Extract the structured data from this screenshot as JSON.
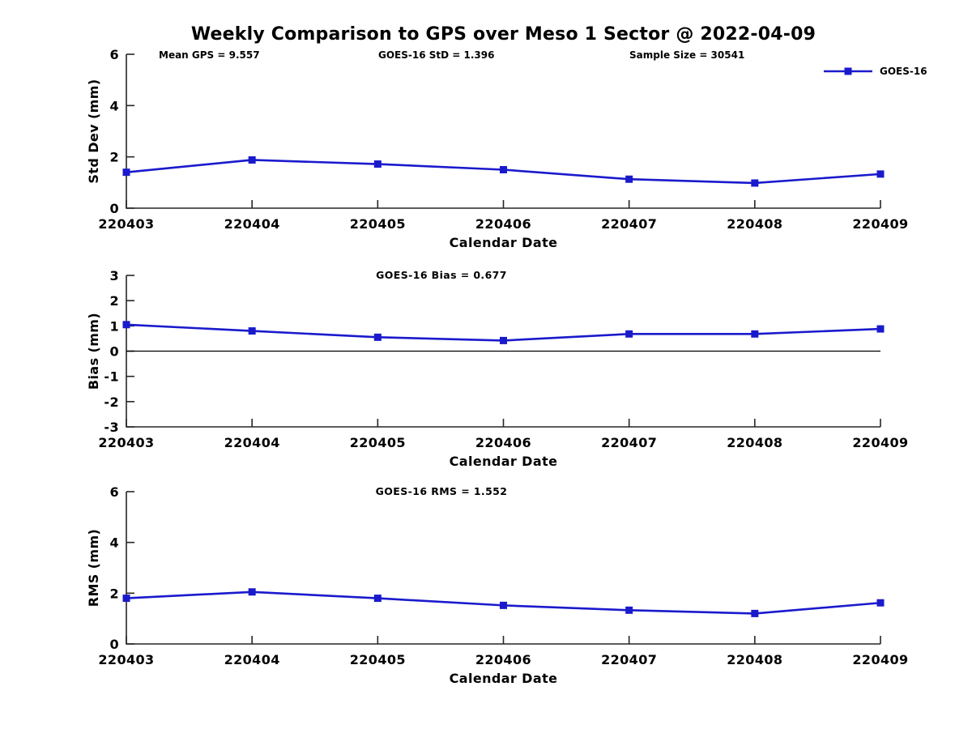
{
  "title": "Weekly Comparison to GPS over Meso 1 Sector @ 2022-04-09",
  "legend": {
    "label": "GOES-16",
    "position": "top-right",
    "color": "#1a1acd"
  },
  "colors": {
    "series": "#1a1acd",
    "axis": "#262626",
    "text": "#000000",
    "zero_line": "#000000"
  },
  "chart_data": [
    {
      "type": "line",
      "title": "",
      "annotations": [
        "Mean GPS = 9.557",
        "GOES-16 StD = 1.396",
        "Sample Size = 30541"
      ],
      "categories": [
        "220403",
        "220404",
        "220405",
        "220406",
        "220407",
        "220408",
        "220409"
      ],
      "series": [
        {
          "name": "GOES-16",
          "values": [
            1.4,
            1.88,
            1.72,
            1.5,
            1.13,
            0.98,
            1.33
          ]
        }
      ],
      "xlabel": "Calendar Date",
      "ylabel": "Std Dev (mm)",
      "ylim": [
        0,
        6
      ],
      "yticks": [
        0,
        2,
        4,
        6
      ],
      "grid": false,
      "zero_line": false
    },
    {
      "type": "line",
      "title": "GOES-16 Bias  = 0.677",
      "annotations": [],
      "categories": [
        "220403",
        "220404",
        "220405",
        "220406",
        "220407",
        "220408",
        "220409"
      ],
      "series": [
        {
          "name": "GOES-16",
          "values": [
            1.05,
            0.8,
            0.55,
            0.42,
            0.68,
            0.68,
            0.88
          ]
        }
      ],
      "xlabel": "Calendar Date",
      "ylabel": "Bias (mm)",
      "ylim": [
        -3,
        3
      ],
      "yticks": [
        -3,
        -2,
        -1,
        0,
        1,
        2,
        3
      ],
      "grid": false,
      "zero_line": true
    },
    {
      "type": "line",
      "title": "GOES-16 RMS = 1.552",
      "annotations": [],
      "categories": [
        "220403",
        "220404",
        "220405",
        "220406",
        "220407",
        "220408",
        "220409"
      ],
      "series": [
        {
          "name": "GOES-16",
          "values": [
            1.8,
            2.05,
            1.8,
            1.52,
            1.33,
            1.2,
            1.62
          ]
        }
      ],
      "xlabel": "Calendar Date",
      "ylabel": "RMS (mm)",
      "ylim": [
        0,
        6
      ],
      "yticks": [
        0,
        2,
        4,
        6
      ],
      "grid": false,
      "zero_line": false
    }
  ]
}
